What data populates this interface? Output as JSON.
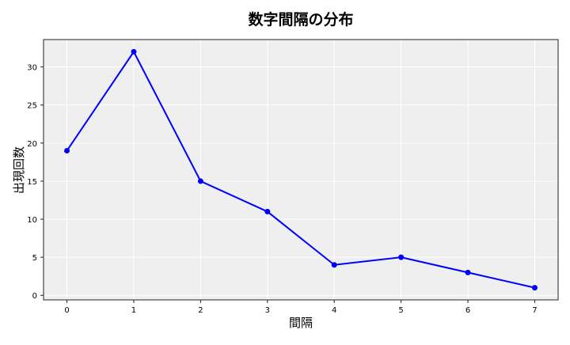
{
  "chart_data": {
    "type": "line",
    "title": "数字間隔の分布",
    "xlabel": "間隔",
    "ylabel": "出現回数",
    "x": [
      0,
      1,
      2,
      3,
      4,
      5,
      6,
      7
    ],
    "series": [
      {
        "values": [
          19,
          32,
          15,
          11,
          4,
          5,
          3,
          1
        ],
        "color": "#0000ff",
        "marker": "circle"
      }
    ],
    "xticks": [
      "0",
      "1",
      "2",
      "3",
      "4",
      "5",
      "6",
      "7"
    ],
    "yticks": [
      "0",
      "5",
      "10",
      "15",
      "20",
      "25",
      "30"
    ],
    "xlim": [
      -0.35,
      7.35
    ],
    "ylim": [
      -0.6,
      33.6
    ],
    "grid": true,
    "background": "#efefef"
  }
}
